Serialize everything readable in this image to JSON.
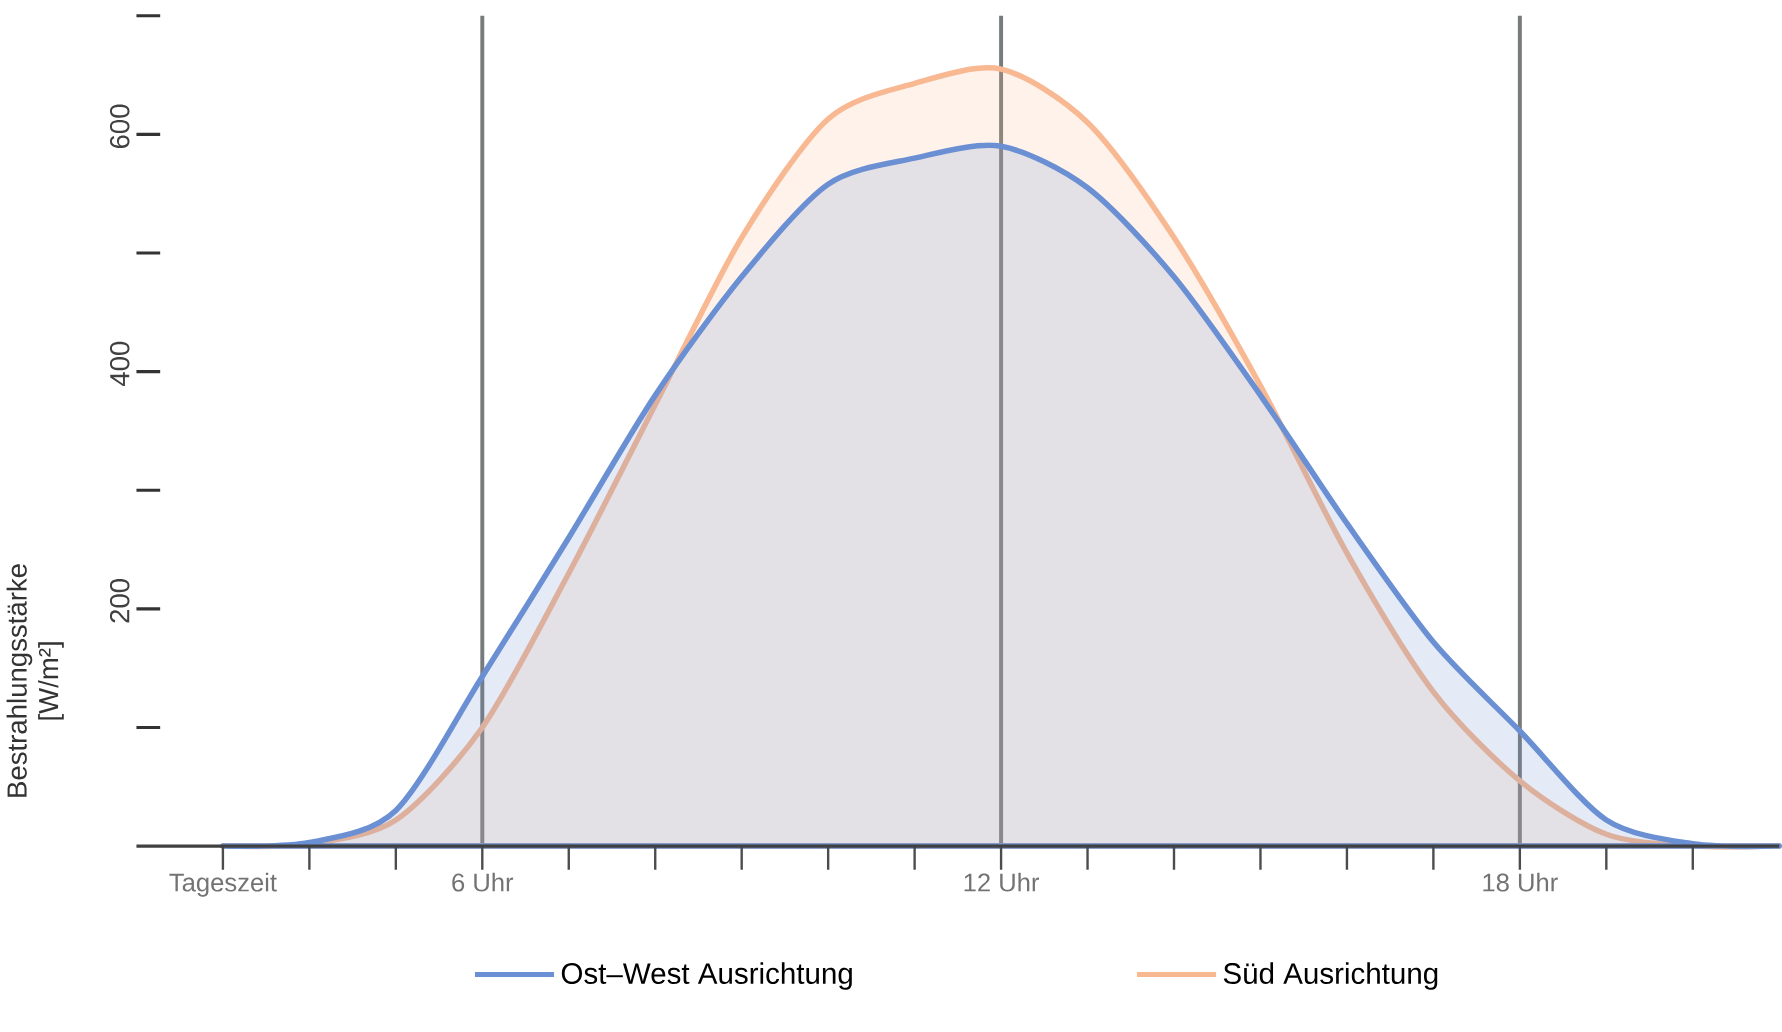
{
  "chart_data": {
    "type": "area",
    "ylabel": "Bestrahlungsstärke [W/m²]",
    "x": [
      3,
      4,
      5,
      6,
      7,
      8,
      9,
      10,
      11,
      12,
      13,
      14,
      15,
      16,
      17,
      18,
      19,
      20,
      21
    ],
    "series": [
      {
        "name": "Ost–West Ausrichtung",
        "color": "#6b8fd3",
        "values": [
          0,
          3,
          30,
          143,
          260,
          380,
          480,
          558,
          580,
          590,
          555,
          480,
          380,
          272,
          172,
          97,
          22,
          2,
          0
        ]
      },
      {
        "name": "Süd Ausrichtung",
        "color": "#f7b892",
        "values": [
          0,
          2,
          22,
          100,
          230,
          372,
          513,
          613,
          643,
          655,
          610,
          513,
          388,
          247,
          130,
          55,
          10,
          0,
          0
        ]
      }
    ],
    "xlim": [
      2,
      21
    ],
    "xticks": [
      {
        "value": 3,
        "label": "Tageszeit"
      },
      {
        "value": 4,
        "label": null
      },
      {
        "value": 5,
        "label": null
      },
      {
        "value": 6,
        "label": "6 Uhr"
      },
      {
        "value": 7,
        "label": null
      },
      {
        "value": 8,
        "label": null
      },
      {
        "value": 9,
        "label": null
      },
      {
        "value": 10,
        "label": null
      },
      {
        "value": 11,
        "label": null
      },
      {
        "value": 12,
        "label": "12 Uhr"
      },
      {
        "value": 13,
        "label": null
      },
      {
        "value": 14,
        "label": null
      },
      {
        "value": 15,
        "label": null
      },
      {
        "value": 16,
        "label": null
      },
      {
        "value": 17,
        "label": null
      },
      {
        "value": 18,
        "label": "18 Uhr"
      },
      {
        "value": 19,
        "label": null
      },
      {
        "value": 20,
        "label": null
      }
    ],
    "ylim": [
      0,
      700
    ],
    "yticks": [
      {
        "value": 100,
        "label": null
      },
      200,
      {
        "value": 300,
        "label": null
      },
      400,
      {
        "value": 500,
        "label": null
      },
      600,
      {
        "value": 700,
        "label": null
      }
    ],
    "ref_lines": [
      {
        "axis": "x",
        "value": 6,
        "color": "#777b7b"
      },
      {
        "axis": "x",
        "value": 12,
        "color": "#777b7b"
      },
      {
        "axis": "x",
        "value": 18,
        "color": "#777b7b"
      }
    ],
    "legend": "bottom",
    "grid": false
  }
}
